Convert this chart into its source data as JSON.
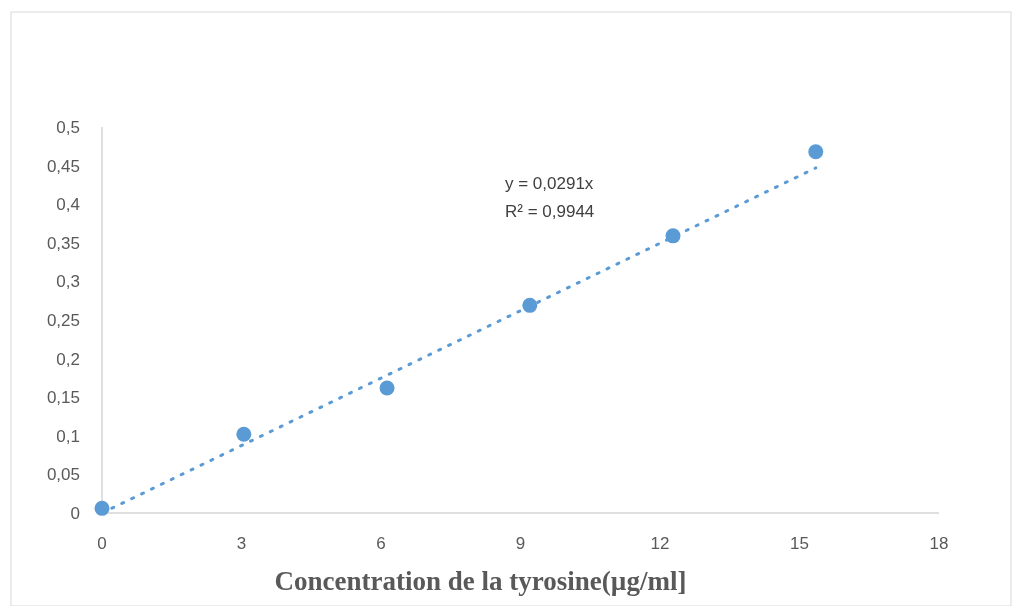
{
  "chart_data": {
    "type": "scatter",
    "xlabel": "Concentration de la tyrosine(µg/ml]",
    "xlim": [
      0,
      18
    ],
    "xticks": [
      0,
      3,
      6,
      9,
      12,
      15,
      18
    ],
    "ylim": [
      0,
      0.5
    ],
    "yticks": [
      0,
      {
        "value": 0.05,
        "label": "0,05"
      },
      {
        "value": 0.1,
        "label": "0,1"
      },
      {
        "value": 0.15,
        "label": "0,15"
      },
      {
        "value": 0.2,
        "label": "0,2"
      },
      {
        "value": 0.25,
        "label": "0,25"
      },
      {
        "value": 0.3,
        "label": "0,3"
      },
      {
        "value": 0.35,
        "label": "0,35"
      },
      {
        "value": 0.4,
        "label": "0,4"
      },
      {
        "value": 0.45,
        "label": "0,45"
      },
      {
        "value": 0.5,
        "label": "0,5"
      }
    ],
    "grid": false,
    "series": [
      {
        "color": "#5b9bd5",
        "marker": "circle",
        "x": [
          0,
          3.05,
          6.13,
          9.2,
          12.28,
          15.35
        ],
        "values": [
          0.006,
          0.102,
          0.162,
          0.269,
          0.359,
          0.468
        ]
      },
      {
        "type": "line",
        "color": "#5b9bd5",
        "marker": "none",
        "line_style": "dotted",
        "x": [
          0,
          15.35
        ],
        "values": [
          0,
          0.447
        ]
      }
    ],
    "annotations": [
      "y = 0,0291x",
      "R² = 0,9944"
    ]
  }
}
